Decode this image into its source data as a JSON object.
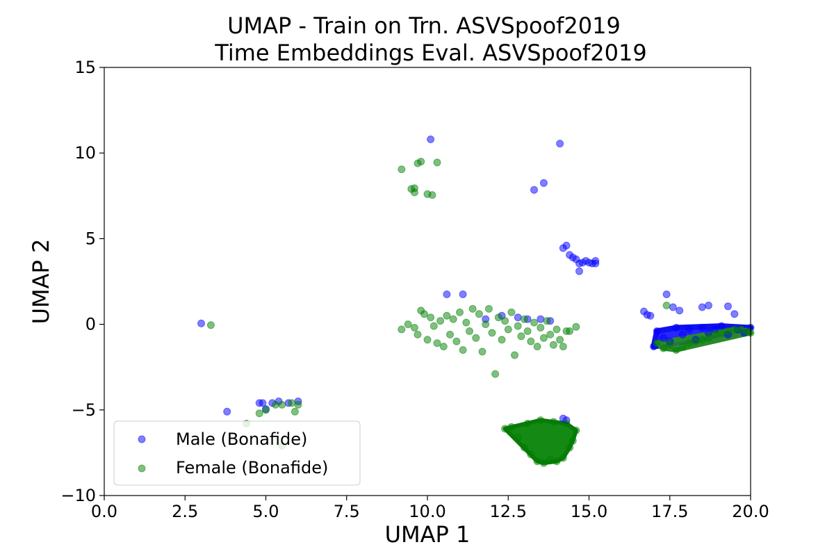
{
  "chart_data": {
    "type": "scatter",
    "title": [
      "UMAP - Train on Trn. ASVSpoof2019",
      "Time Embeddings Eval. ASVSpoof2019"
    ],
    "xlabel": "UMAP 1",
    "ylabel": "UMAP 2",
    "xlim": [
      0,
      20
    ],
    "ylim": [
      -10,
      15
    ],
    "x_ticks": [
      "0.0",
      "2.5",
      "5.0",
      "7.5",
      "10.0",
      "12.5",
      "15.0",
      "17.5",
      "20.0"
    ],
    "y_ticks": [
      "−10",
      "−5",
      "0",
      "5",
      "10",
      "15"
    ],
    "grid": false,
    "legend_position": "lower-left",
    "series": [
      {
        "name": "Male (Bonafide)",
        "color": "#0000ff",
        "alpha": 0.5,
        "points": [
          [
            3.0,
            0.05
          ],
          [
            3.8,
            -5.1
          ],
          [
            4.8,
            -4.6
          ],
          [
            4.9,
            -4.6
          ],
          [
            5.0,
            -4.95
          ],
          [
            5.2,
            -4.6
          ],
          [
            5.4,
            -4.5
          ],
          [
            5.7,
            -4.6
          ],
          [
            6.0,
            -4.5
          ],
          [
            10.1,
            10.8
          ],
          [
            14.1,
            10.55
          ],
          [
            13.3,
            7.85
          ],
          [
            13.6,
            8.25
          ],
          [
            14.2,
            4.45
          ],
          [
            14.3,
            4.6
          ],
          [
            14.4,
            4.05
          ],
          [
            14.5,
            3.9
          ],
          [
            14.6,
            3.8
          ],
          [
            14.7,
            3.55
          ],
          [
            14.7,
            3.1
          ],
          [
            14.8,
            3.6
          ],
          [
            14.9,
            3.7
          ],
          [
            15.0,
            3.6
          ],
          [
            15.1,
            3.55
          ],
          [
            15.2,
            3.7
          ],
          [
            15.2,
            3.55
          ],
          [
            10.6,
            1.75
          ],
          [
            11.1,
            1.75
          ],
          [
            12.3,
            0.5
          ],
          [
            12.8,
            0.4
          ],
          [
            13.1,
            0.3
          ],
          [
            13.5,
            0.3
          ],
          [
            13.8,
            0.2
          ],
          [
            11.8,
            0.3
          ],
          [
            16.7,
            0.75
          ],
          [
            16.8,
            0.55
          ],
          [
            16.9,
            0.5
          ],
          [
            17.4,
            1.75
          ],
          [
            17.6,
            1.0
          ],
          [
            17.8,
            0.8
          ],
          [
            18.5,
            1.0
          ],
          [
            18.7,
            1.1
          ],
          [
            19.3,
            1.05
          ],
          [
            19.5,
            0.6
          ],
          [
            17.0,
            -1.3
          ],
          [
            17.1,
            -0.4
          ],
          [
            17.3,
            -0.8
          ],
          [
            17.5,
            -1.0
          ],
          [
            17.7,
            -0.2
          ],
          [
            17.9,
            -0.6
          ],
          [
            18.1,
            -0.3
          ],
          [
            18.3,
            -0.9
          ],
          [
            18.5,
            -0.2
          ],
          [
            18.7,
            -0.5
          ],
          [
            18.9,
            -0.3
          ],
          [
            19.1,
            -0.1
          ],
          [
            19.3,
            -0.6
          ],
          [
            19.6,
            -0.3
          ],
          [
            19.8,
            -0.5
          ],
          [
            20.0,
            -0.2
          ],
          [
            14.2,
            -5.5
          ],
          [
            14.3,
            -5.6
          ]
        ]
      },
      {
        "name": "Female (Bonafide)",
        "color": "#008000",
        "alpha": 0.5,
        "points": [
          [
            3.3,
            -0.05
          ],
          [
            4.4,
            -5.8
          ],
          [
            4.8,
            -5.2
          ],
          [
            5.0,
            -5.0
          ],
          [
            5.5,
            -7.1
          ],
          [
            5.3,
            -4.7
          ],
          [
            5.5,
            -4.7
          ],
          [
            5.8,
            -4.6
          ],
          [
            5.9,
            -5.1
          ],
          [
            6.0,
            -4.7
          ],
          [
            9.2,
            9.05
          ],
          [
            9.5,
            7.9
          ],
          [
            9.6,
            7.95
          ],
          [
            9.6,
            7.7
          ],
          [
            9.7,
            9.4
          ],
          [
            9.8,
            9.5
          ],
          [
            10.0,
            7.6
          ],
          [
            10.15,
            7.55
          ],
          [
            10.3,
            9.45
          ],
          [
            9.2,
            -0.3
          ],
          [
            9.4,
            0.0
          ],
          [
            9.6,
            -0.2
          ],
          [
            9.7,
            -0.6
          ],
          [
            9.8,
            0.8
          ],
          [
            9.9,
            0.6
          ],
          [
            10.0,
            -0.9
          ],
          [
            10.1,
            0.4
          ],
          [
            10.2,
            -0.1
          ],
          [
            10.3,
            -1.1
          ],
          [
            10.4,
            0.2
          ],
          [
            10.5,
            -1.3
          ],
          [
            10.6,
            0.5
          ],
          [
            10.7,
            -0.6
          ],
          [
            10.8,
            0.3
          ],
          [
            10.9,
            -1.0
          ],
          [
            11.0,
            0.7
          ],
          [
            11.1,
            -1.5
          ],
          [
            11.2,
            0.1
          ],
          [
            11.3,
            -0.4
          ],
          [
            11.4,
            0.9
          ],
          [
            11.5,
            -0.8
          ],
          [
            11.6,
            0.6
          ],
          [
            11.7,
            -1.6
          ],
          [
            11.8,
            0.0
          ],
          [
            11.9,
            0.9
          ],
          [
            12.0,
            -0.5
          ],
          [
            12.1,
            -2.9
          ],
          [
            12.2,
            0.4
          ],
          [
            12.3,
            -0.9
          ],
          [
            12.4,
            0.2
          ],
          [
            12.5,
            -0.3
          ],
          [
            12.6,
            0.7
          ],
          [
            12.7,
            -1.8
          ],
          [
            12.8,
            -0.1
          ],
          [
            12.9,
            -0.7
          ],
          [
            13.0,
            0.3
          ],
          [
            13.1,
            -0.4
          ],
          [
            13.2,
            -1.0
          ],
          [
            13.3,
            0.1
          ],
          [
            13.4,
            -1.3
          ],
          [
            13.5,
            -0.2
          ],
          [
            13.6,
            -0.8
          ],
          [
            13.7,
            0.2
          ],
          [
            13.8,
            -0.6
          ],
          [
            13.9,
            -1.2
          ],
          [
            14.0,
            -0.3
          ],
          [
            14.1,
            -0.9
          ],
          [
            14.2,
            -1.3
          ],
          [
            14.3,
            -0.4
          ],
          [
            14.4,
            -0.4
          ],
          [
            14.6,
            -0.15
          ],
          [
            17.1,
            -1.1
          ],
          [
            17.3,
            -1.4
          ],
          [
            17.5,
            -1.2
          ],
          [
            17.7,
            -1.5
          ],
          [
            17.9,
            -1.3
          ],
          [
            18.1,
            -1.1
          ],
          [
            18.3,
            -1.0
          ],
          [
            18.5,
            -0.9
          ],
          [
            18.7,
            -0.8
          ],
          [
            18.9,
            -0.6
          ],
          [
            19.1,
            -0.5
          ],
          [
            19.3,
            -0.4
          ],
          [
            19.5,
            -0.3
          ],
          [
            19.7,
            -0.3
          ],
          [
            19.9,
            -0.4
          ],
          [
            20.0,
            -0.5
          ],
          [
            17.4,
            1.1
          ],
          [
            12.4,
            -6.1
          ],
          [
            12.6,
            -6.0
          ],
          [
            12.8,
            -6.6
          ],
          [
            13.0,
            -7.2
          ],
          [
            13.2,
            -7.6
          ],
          [
            13.4,
            -8.0
          ],
          [
            13.6,
            -8.1
          ],
          [
            13.8,
            -7.9
          ],
          [
            14.0,
            -8.0
          ],
          [
            14.2,
            -7.8
          ],
          [
            14.4,
            -7.2
          ],
          [
            14.5,
            -6.8
          ],
          [
            14.6,
            -6.2
          ],
          [
            14.3,
            -5.8
          ],
          [
            13.9,
            -5.7
          ],
          [
            13.5,
            -5.6
          ],
          [
            13.1,
            -5.8
          ]
        ]
      }
    ]
  }
}
